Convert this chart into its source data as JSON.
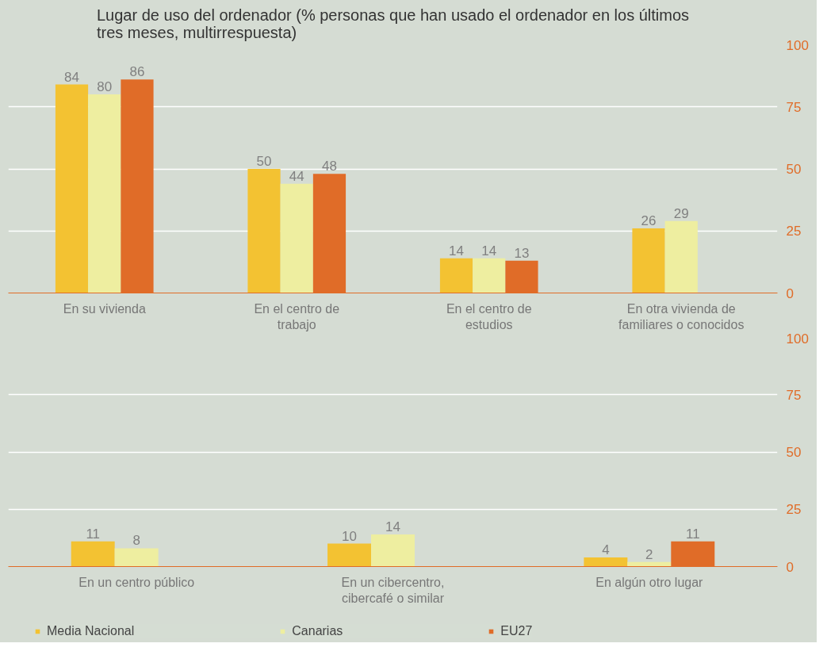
{
  "chart_data": [
    {
      "type": "bar",
      "title": "Lugar de uso del ordenador (% personas que han usado el ordenador en los últimos tres meses, multirrespuesta)",
      "categories": [
        "En su vivienda",
        "En el centro de trabajo",
        "En el centro de estudios",
        "En otra vivienda de familiares o conocidos"
      ],
      "series": [
        {
          "color": "#f3c232",
          "values": [
            84,
            50,
            14,
            26
          ]
        },
        {
          "color": "#eeeea0",
          "values": [
            80,
            44,
            14,
            29
          ]
        },
        {
          "color": "#e06c28",
          "values": [
            86,
            48,
            13,
            null
          ]
        }
      ],
      "ylim": [
        0,
        100
      ],
      "yticks": [
        0,
        25,
        50,
        75,
        100
      ],
      "grid": "y",
      "data_labels": true,
      "legend": false
    },
    {
      "type": "bar",
      "categories": [
        "En un centro público",
        "En un cibercentro, cibercafé o similar",
        "En algún otro lugar"
      ],
      "series": [
        {
          "name": "Media Nacional",
          "color": "#f3c232",
          "values": [
            11,
            10,
            4
          ]
        },
        {
          "name": "Canarias",
          "color": "#eeeea0",
          "values": [
            8,
            14,
            2
          ]
        },
        {
          "name": "EU27",
          "color": "#e06c28",
          "values": [
            null,
            null,
            11
          ]
        }
      ],
      "ylim": [
        0,
        100
      ],
      "yticks": [
        0,
        25,
        50,
        75,
        100
      ],
      "grid": "y",
      "data_labels": true,
      "legend": "bottom"
    }
  ]
}
